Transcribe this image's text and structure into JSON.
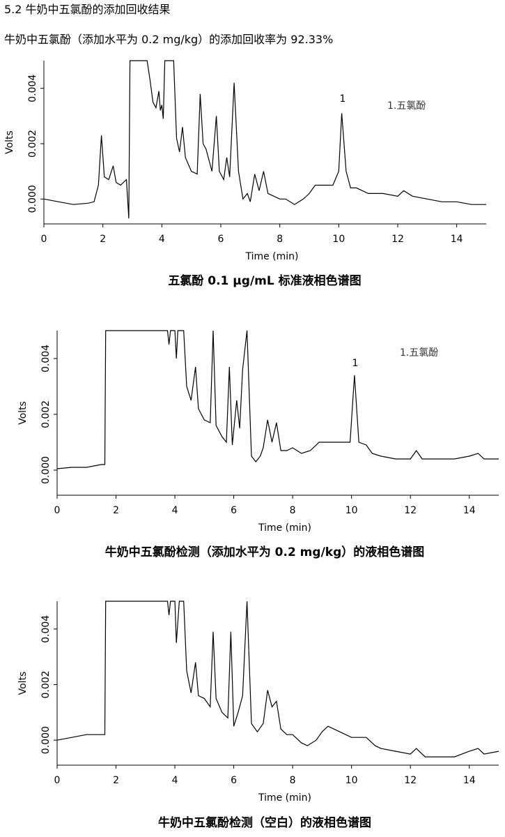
{
  "heading": "5.2 牛奶中五氯酚的添加回收结果",
  "subheading": "牛奶中五氯酚（添加水平为  0.2 mg/kg）的添加回收率为 92.33%",
  "chart_data": [
    {
      "type": "line",
      "title": "五氯酚 0.1 μg/mL 标准液相色谱图",
      "x_label": "Time (min)",
      "y_label": "Volts",
      "peak_label": "1",
      "legend_text": "1.五氯酚",
      "color": "#000000",
      "xlim": [
        0,
        15
      ],
      "ylim": [
        -0.0009,
        0.005
      ],
      "xticks": [
        0,
        2,
        4,
        6,
        8,
        10,
        12,
        14
      ],
      "yticks": [
        {
          "value": 0,
          "label": "0.000"
        },
        {
          "value": 0.002,
          "label": "0.002"
        },
        {
          "value": 0.004,
          "label": "0.004"
        }
      ],
      "x": [
        0,
        0.5,
        1,
        1.5,
        1.7,
        1.85,
        1.95,
        2.05,
        2.2,
        2.35,
        2.45,
        2.6,
        2.8,
        2.88,
        2.92,
        3.5,
        3.6,
        3.7,
        3.8,
        3.9,
        3.95,
        4.0,
        4.05,
        4.1,
        4.4,
        4.5,
        4.6,
        4.7,
        4.8,
        5.0,
        5.2,
        5.3,
        5.4,
        5.5,
        5.7,
        5.85,
        5.95,
        6.1,
        6.2,
        6.3,
        6.45,
        6.6,
        6.75,
        6.9,
        7.0,
        7.15,
        7.3,
        7.45,
        7.6,
        7.8,
        8.0,
        8.2,
        8.5,
        8.8,
        9.0,
        9.2,
        9.5,
        9.8,
        10.0,
        10.1,
        10.25,
        10.4,
        10.6,
        11,
        11.5,
        12,
        12.2,
        12.5,
        13,
        13.5,
        14,
        14.5,
        15
      ],
      "values": [
        0,
        -0.0001,
        -0.0002,
        -0.00015,
        -0.0001,
        0.0005,
        0.0023,
        0.0008,
        0.0007,
        0.0012,
        0.0006,
        0.0005,
        0.0007,
        -0.0007,
        0.005,
        0.005,
        0.0043,
        0.0035,
        0.0033,
        0.0039,
        0.0032,
        0.0034,
        0.0029,
        0.005,
        0.005,
        0.0022,
        0.0017,
        0.0026,
        0.0015,
        0.001,
        0.0009,
        0.0038,
        0.002,
        0.0018,
        0.001,
        0.003,
        0.001,
        0.0007,
        0.0015,
        0.0008,
        0.0042,
        0.001,
        0,
        0.0002,
        -0.0001,
        0.0009,
        0.0003,
        0.001,
        0.0002,
        0.0001,
        0,
        0,
        -0.0002,
        0,
        0.0002,
        0.0005,
        0.0005,
        0.0005,
        0.001,
        0.0031,
        0.001,
        0.0004,
        0.0004,
        0.0002,
        0.0002,
        0.0001,
        0.0003,
        0.0001,
        0,
        -0.0001,
        -0.0001,
        -0.0002,
        -0.0002
      ]
    },
    {
      "type": "line",
      "title": "牛奶中五氯酚检测（添加水平为  0.2 mg/kg）的液相色谱图",
      "x_label": "Time (min)",
      "y_label": "Volts",
      "peak_label": "1",
      "legend_text": "1.五氯酚",
      "color": "#000000",
      "xlim": [
        0,
        15
      ],
      "ylim": [
        -0.0009,
        0.005
      ],
      "xticks": [
        0,
        2,
        4,
        6,
        8,
        10,
        12,
        14
      ],
      "yticks": [
        {
          "value": 0,
          "label": "0.000"
        },
        {
          "value": 0.002,
          "label": "0.002"
        },
        {
          "value": 0.004,
          "label": "0.004"
        }
      ],
      "x": [
        0,
        0.5,
        1,
        1.5,
        1.62,
        1.65,
        3.75,
        3.8,
        3.85,
        4.0,
        4.05,
        4.1,
        4.3,
        4.4,
        4.55,
        4.7,
        4.8,
        5.0,
        5.2,
        5.3,
        5.4,
        5.6,
        5.75,
        5.85,
        5.95,
        6.1,
        6.2,
        6.3,
        6.45,
        6.6,
        6.75,
        6.9,
        7.0,
        7.15,
        7.3,
        7.45,
        7.6,
        7.8,
        8.0,
        8.3,
        8.6,
        8.9,
        9.2,
        9.6,
        9.95,
        10.1,
        10.25,
        10.5,
        10.7,
        11,
        11.5,
        12,
        12.2,
        12.4,
        13,
        13.5,
        14,
        14.3,
        14.5,
        15
      ],
      "values": [
        5e-05,
        0.0001,
        0.0001,
        0.0002,
        0.0002,
        0.005,
        0.005,
        0.0045,
        0.005,
        0.005,
        0.004,
        0.005,
        0.005,
        0.003,
        0.0025,
        0.0037,
        0.0022,
        0.0018,
        0.0017,
        0.005,
        0.0016,
        0.0012,
        0.001,
        0.0037,
        0.0009,
        0.0025,
        0.0015,
        0.0036,
        0.005,
        0.0005,
        0.0003,
        0.0005,
        0.0008,
        0.0018,
        0.001,
        0.0017,
        0.0007,
        0.0007,
        0.0008,
        0.0006,
        0.0007,
        0.001,
        0.001,
        0.001,
        0.001,
        0.0034,
        0.001,
        0.0009,
        0.0006,
        0.0005,
        0.0004,
        0.0004,
        0.0007,
        0.0004,
        0.0004,
        0.0004,
        0.0005,
        0.0006,
        0.0004,
        0.0004
      ]
    },
    {
      "type": "line",
      "title": "牛奶中五氯酚检测（空白）的液相色谱图",
      "x_label": "Time (min)",
      "y_label": "Volts",
      "color": "#000000",
      "xlim": [
        0,
        15
      ],
      "ylim": [
        -0.0009,
        0.005
      ],
      "xticks": [
        0,
        2,
        4,
        6,
        8,
        10,
        12,
        14
      ],
      "yticks": [
        {
          "value": 0,
          "label": "0.000"
        },
        {
          "value": 0.002,
          "label": "0.002"
        },
        {
          "value": 0.004,
          "label": "0.004"
        }
      ],
      "x": [
        0,
        0.5,
        1,
        1.5,
        1.62,
        1.65,
        3.75,
        3.8,
        3.85,
        4.0,
        4.05,
        4.15,
        4.3,
        4.4,
        4.55,
        4.7,
        4.8,
        5.0,
        5.2,
        5.3,
        5.4,
        5.6,
        5.8,
        5.9,
        6.0,
        6.15,
        6.3,
        6.45,
        6.6,
        6.8,
        7.0,
        7.15,
        7.3,
        7.45,
        7.6,
        7.8,
        8.0,
        8.3,
        8.5,
        8.8,
        9.0,
        9.2,
        9.6,
        10,
        10.5,
        10.8,
        11,
        11.5,
        12,
        12.2,
        12.5,
        13,
        13.5,
        14,
        14.3,
        14.5,
        15
      ],
      "values": [
        0,
        0.0001,
        0.0002,
        0.0002,
        0.0002,
        0.005,
        0.005,
        0.0045,
        0.005,
        0.005,
        0.0035,
        0.005,
        0.005,
        0.0025,
        0.0017,
        0.0028,
        0.0016,
        0.0015,
        0.0012,
        0.0039,
        0.0015,
        0.001,
        0.0008,
        0.0039,
        0.0005,
        0.001,
        0.0016,
        0.005,
        0.0006,
        0.0003,
        0.0006,
        0.0018,
        0.0012,
        0.0014,
        0.0004,
        0.0002,
        0.0002,
        -0.0001,
        -0.0002,
        0,
        0.0003,
        0.0005,
        0.0003,
        0.0001,
        0.0001,
        -0.0002,
        -0.0003,
        -0.0004,
        -0.0005,
        -0.0003,
        -0.0006,
        -0.0006,
        -0.0006,
        -0.0004,
        -0.0003,
        -0.0005,
        -0.0004
      ]
    }
  ]
}
